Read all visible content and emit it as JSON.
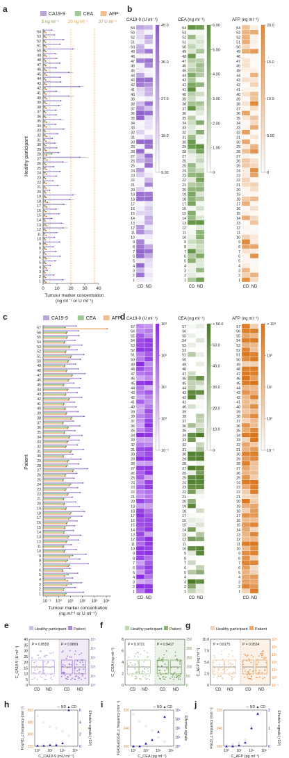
{
  "colors": {
    "ca199": "#b9a6d8",
    "cea": "#9fc896",
    "afp": "#f1c08e",
    "ca199_dark": "#8a5cc8",
    "cea_dark": "#5a8f3a",
    "afp_dark": "#e0893b",
    "dot_red": "#c0392b",
    "dot_green": "#2e7d32",
    "dot_purple": "#6a3d9a",
    "ref_line": "#f08a24",
    "nd_fill": "#c8a0d8",
    "cd_fill": "#1a1aa8"
  },
  "panel_letters": {
    "a": "a",
    "b": "b",
    "c": "c",
    "d": "d",
    "e": "e",
    "f": "f",
    "g": "g",
    "h": "h",
    "i": "i",
    "j": "j"
  },
  "legend": {
    "ca199": "CA19-9",
    "cea": "CEA",
    "afp": "AFP"
  },
  "ref_labels": {
    "cea": "5 ng ml⁻¹",
    "ca199": "20 ng ml⁻¹",
    "afp": "37 U ml⁻¹"
  },
  "chart_data": [
    {
      "id": "a",
      "type": "bar",
      "orientation": "horizontal",
      "ylabel": "Healthy participant",
      "xlabel": "Tumour marker concentration",
      "xlabel2": "(ng ml⁻¹ or U ml⁻¹)",
      "xlim": [
        0,
        40
      ],
      "xticks": [
        "0",
        "10",
        "20",
        "30",
        "40"
      ],
      "reference_lines": [
        5,
        20,
        37
      ],
      "categories": [
        "1",
        "2",
        "3",
        "4",
        "5",
        "6",
        "7",
        "8",
        "9",
        "10",
        "11",
        "12",
        "13",
        "14",
        "15",
        "16",
        "17",
        "18",
        "19",
        "20",
        "21",
        "22",
        "23",
        "24",
        "25",
        "26",
        "27",
        "28",
        "29",
        "30",
        "31",
        "32",
        "33",
        "34",
        "35",
        "36",
        "37",
        "38",
        "39",
        "40",
        "41",
        "42",
        "43",
        "44",
        "45",
        "46",
        "47",
        "48",
        "49",
        "50",
        "51",
        "52",
        "53",
        "54"
      ],
      "series": [
        {
          "name": "CA19-9",
          "values": [
            14.2,
            7.8,
            3.1,
            5.2,
            8.6,
            12.3,
            9.1,
            7.4,
            11.8,
            8.2,
            9.7,
            14.5,
            13.2,
            6.1,
            11.4,
            9.3,
            14.8,
            19.2,
            21.5,
            4.8,
            10.6,
            7.2,
            9.4,
            12.1,
            7.6,
            14.3,
            26.4,
            11.2,
            9.8,
            8.5,
            6.7,
            10.3,
            14.6,
            8.9,
            12.4,
            9.6,
            9.1,
            11.3,
            12.8,
            18.6,
            9.4,
            26.2,
            12.7,
            12.5,
            18.7,
            9.3,
            12.1,
            9.6,
            8.8,
            21.3,
            12.2,
            14.6,
            8.1,
            6.2
          ]
        },
        {
          "name": "CEA",
          "values": [
            1.3,
            1.1,
            0.9,
            1.4,
            1.2,
            1.6,
            1.0,
            1.3,
            1.5,
            1.1,
            1.2,
            1.4,
            1.6,
            1.0,
            1.3,
            1.2,
            1.5,
            1.7,
            1.4,
            1.1,
            1.3,
            1.2,
            1.0,
            1.4,
            1.6,
            1.2,
            1.5,
            6.2,
            1.3,
            1.1,
            1.2,
            1.4,
            1.0,
            1.3,
            1.5,
            1.2,
            1.1,
            1.3,
            1.4,
            1.6,
            1.2,
            1.5,
            1.3,
            1.1,
            1.4,
            1.2,
            1.3,
            1.0,
            1.5,
            1.2,
            1.4,
            1.1,
            1.3,
            1.2
          ]
        },
        {
          "name": "AFP",
          "values": [
            2.1,
            1.8,
            1.5,
            2.4,
            2.0,
            2.6,
            1.9,
            2.2,
            2.5,
            1.7,
            2.3,
            2.1,
            2.8,
            1.6,
            2.4,
            2.0,
            2.7,
            3.1,
            2.2,
            1.9,
            2.1,
            2.3,
            1.8,
            2.6,
            2.4,
            2.0,
            2.9,
            2.5,
            2.2,
            1.9,
            2.1,
            2.4,
            1.7,
            2.3,
            2.6,
            2.0,
            1.9,
            2.2,
            2.5,
            2.7,
            2.1,
            2.4,
            2.3,
            2.0,
            2.6,
            2.2,
            2.1,
            1.8,
            2.4,
            2.0,
            2.3,
            1.9,
            2.2,
            2.1
          ]
        }
      ]
    },
    {
      "id": "b",
      "type": "heatmap",
      "panels": [
        {
          "title": "CA19-9 (U ml⁻¹)",
          "columns": [
            "CD",
            "ND"
          ],
          "colorbar_ticks": [
            "9.00",
            "18.0",
            "27.0",
            "36.0",
            "45.0"
          ],
          "colorbar_range": [
            0,
            45
          ],
          "color": "#8a5cc8"
        },
        {
          "title": "CEA (ng ml⁻¹)",
          "columns": [
            "CD",
            "ND"
          ],
          "colorbar_ticks": [
            "0",
            "1.00",
            "2.00",
            "3.00",
            "4.00",
            "5.00",
            "6.00"
          ],
          "colorbar_range": [
            0,
            6.4
          ],
          "color": "#5a8f3a"
        },
        {
          "title": "AFP (ng ml⁻¹)",
          "columns": [
            "CD",
            "ND"
          ],
          "colorbar_ticks": [
            "0",
            "5.00",
            "10.0",
            "15.0",
            "20.0"
          ],
          "colorbar_range": [
            0,
            20
          ],
          "color": "#e0893b"
        }
      ],
      "rows": 54
    },
    {
      "id": "c",
      "type": "bar",
      "orientation": "horizontal",
      "xscale": "log",
      "ylabel": "Patient",
      "xlabel": "Tumour marker concentration",
      "xlabel2": "(ng ml⁻¹ or U ml⁻¹)",
      "xticks": [
        "10⁻¹",
        "10⁰",
        "10¹",
        "10²",
        "10³",
        "10⁴"
      ],
      "xlim_log": [
        -1.3,
        4.4
      ],
      "categories": [
        "1",
        "2",
        "3",
        "4",
        "5",
        "6",
        "7",
        "8",
        "9",
        "10",
        "11",
        "12",
        "13",
        "14",
        "15",
        "16",
        "17",
        "18",
        "19",
        "20",
        "21",
        "22",
        "23",
        "24",
        "25",
        "26",
        "27",
        "28",
        "29",
        "30",
        "31",
        "32",
        "33",
        "34",
        "35",
        "36",
        "37",
        "38",
        "39",
        "40",
        "41",
        "42",
        "43",
        "44",
        "45",
        "46",
        "47",
        "48",
        "49",
        "50",
        "51",
        "52",
        "53",
        "54",
        "55",
        "56",
        "57"
      ],
      "series": [
        {
          "name": "CA19-9",
          "values": [
            120,
            25,
            80,
            15,
            40,
            9,
            300,
            60,
            200,
            30,
            12,
            45,
            70,
            18,
            22,
            35,
            90,
            150,
            55,
            28,
            14,
            65,
            40,
            110,
            20,
            33,
            260,
            48,
            75,
            16,
            120,
            38,
            52,
            95,
            24,
            60,
            18,
            140,
            42,
            30,
            22,
            85,
            36,
            58,
            19,
            72,
            160,
            44,
            27,
            68,
            130,
            35,
            90,
            24,
            50,
            46,
            30
          ]
        },
        {
          "name": "CEA",
          "values": [
            4.2,
            2.8,
            12,
            3.5,
            6.4,
            2.1,
            8.3,
            5.6,
            15,
            3.2,
            2.6,
            4.8,
            7.1,
            2.9,
            3.4,
            5.2,
            9.6,
            11,
            4.4,
            3.1,
            2.7,
            6.2,
            4.1,
            10,
            2.5,
            3.8,
            18,
            5.3,
            6.9,
            2.6,
            12,
            4.2,
            5.8,
            8.7,
            3.1,
            6.4,
            2.4,
            13,
            4.6,
            3.6,
            2.8,
            7.9,
            4.0,
            5.9,
            2.7,
            7.3,
            14,
            4.9,
            3.3,
            6.8,
            12,
            4.1,
            8.8,
            3.2,
            5.4,
            5.0,
            3.5
          ]
        },
        {
          "name": "AFP",
          "values": [
            3.2,
            2.5,
            4.8,
            5.6,
            3.1,
            2.2,
            6.4,
            4.0,
            8.6,
            2.9,
            2.4,
            4.1,
            5.9,
            2.7,
            3.3,
            4.6,
            7.2,
            9.1,
            3.8,
            2.8,
            2.5,
            5.4,
            3.6,
            8.0,
            2.3,
            3.4,
            15,
            4.5,
            5.7,
            2.4,
            9.8,
            3.7,
            5.0,
            7.4,
            2.9,
            5.6,
            2.2,
            11,
            4.0,
            3.2,
            2.6,
            6.8,
            3.5,
            5.2,
            2.5,
            6.2,
            12,
            4.3,
            3.0,
            5.9,
            10,
            3.6,
            7.6,
            2.9,
            4.7,
            4.4,
            12000
          ]
        }
      ]
    },
    {
      "id": "d",
      "type": "heatmap",
      "panels": [
        {
          "title": "CA19-9 (U ml⁻¹)",
          "columns": [
            "CD",
            "ND"
          ],
          "colorbar_ticks": [
            "10⁻¹",
            "10⁰",
            "10¹",
            "10²",
            "10³"
          ],
          "color": "#8a2be2"
        },
        {
          "title": "CEA (ng ml⁻¹)",
          "columns": [
            "CD",
            "ND"
          ],
          "colorbar_ticks": [
            "0",
            "10.0",
            "20.0",
            "30.0",
            "40.0",
            "50.0",
            "> 50.0"
          ],
          "color": "#4a7a25"
        },
        {
          "title": "AFP (ng ml⁻¹)",
          "columns": [
            "CD",
            "ND"
          ],
          "colorbar_ticks": [
            "10⁻¹",
            "10⁰",
            "10¹",
            "10²",
            "> 10³"
          ],
          "color": "#d9741a"
        }
      ],
      "rows": 57
    },
    {
      "id": "e",
      "type": "scatter",
      "ylabel": "C_CA19-9 (U ml⁻¹)",
      "ylabel_right": "",
      "legend": [
        "Healthy participant",
        "Patient"
      ],
      "yticks": [
        "0",
        "5",
        "10",
        "15",
        "20",
        "25",
        "30",
        "35",
        "40"
      ],
      "yticks_right": [
        "10⁰",
        "10¹",
        "10²",
        "10³",
        "10⁴",
        "10⁵"
      ],
      "categories": [
        "CD",
        "ND",
        "CD",
        "ND"
      ],
      "p_values": [
        "P = 0.8559",
        "P = 0.9869"
      ]
    },
    {
      "id": "f",
      "type": "scatter",
      "ylabel": "C_CEA (ng ml⁻¹)",
      "legend": [
        "Healthy participant",
        "Patient"
      ],
      "yticks": [
        "0",
        "2",
        "4",
        "6",
        "8"
      ],
      "yticks_right": [
        "0",
        "50",
        "100",
        "150",
        "200",
        "250"
      ],
      "categories": [
        "CD",
        "ND",
        "CD",
        "ND"
      ],
      "p_values": [
        "P = 0.9721",
        "P = 0.9417"
      ]
    },
    {
      "id": "g",
      "type": "scatter",
      "ylabel": "C_AFP (ng ml⁻¹)",
      "legend": [
        "Healthy participant",
        "Patient"
      ],
      "yticks": [
        "0",
        "2.5",
        "5.0",
        "7.5",
        "10.0"
      ],
      "yticks_right": [
        "10⁻¹",
        "10⁰",
        "10¹",
        "10²",
        "10³",
        "10⁴",
        "10⁵"
      ],
      "categories": [
        "CD",
        "ND",
        "CD",
        "ND"
      ],
      "p_values": [
        "P = 0.8175",
        "P = 0.9534"
      ]
    },
    {
      "id": "h",
      "type": "scatter",
      "xscale": "log",
      "legend": [
        "ND",
        "CD"
      ],
      "ylabel": "FGpYD_c frequency (min⁻¹)",
      "ylabel_right": "Effective signals (×10³)",
      "xlabel": "C_CA19-9 (mU ml⁻¹)",
      "xticks": [
        "10⁰",
        "10²",
        "10⁴",
        "10⁶"
      ],
      "yticks": [
        "320",
        "400",
        "480",
        "560"
      ],
      "yticks_right": [
        "0",
        "2",
        "4",
        "6"
      ],
      "nd": {
        "x": [
          1,
          10,
          100,
          1000,
          10000,
          100000
        ],
        "y": [
          520,
          480,
          450,
          440,
          420,
          390
        ]
      },
      "cd": {
        "x": [
          1,
          10,
          100,
          1000,
          10000,
          100000
        ],
        "y": [
          0.1,
          0.1,
          0.2,
          0.2,
          0.5,
          6.0
        ]
      }
    },
    {
      "id": "i",
      "type": "scatter",
      "xscale": "log",
      "legend": [
        "ND",
        "CD"
      ],
      "ylabel": "FGK(Gal)GGD_c frequency (min⁻¹)",
      "ylabel_right": "Effective signals",
      "xlabel": "C_CEA (pg ml⁻¹)",
      "xticks": [
        "10⁰",
        "10²",
        "10⁴",
        "10⁶"
      ],
      "yticks": [
        "160",
        "240",
        "320"
      ],
      "yticks_right": [
        "10⁰",
        "10¹",
        "10²",
        "10³",
        "10⁴"
      ],
      "nd": {
        "x": [
          1,
          10,
          100,
          1000,
          10000,
          100000
        ],
        "y": [
          300,
          270,
          250,
          230,
          200,
          180
        ]
      },
      "cd": {
        "x": [
          1,
          10,
          100,
          1000,
          10000,
          100000
        ],
        "y": [
          1,
          1,
          2,
          5,
          40,
          1800
        ]
      }
    },
    {
      "id": "j",
      "type": "scatter",
      "xscale": "log",
      "legend": [
        "ND",
        "CD"
      ],
      "ylabel": "FGLD_c frequency (min⁻¹)",
      "ylabel_right": "Effective signals (×10³)",
      "xlabel": "C_AFP (pg ml⁻¹)",
      "xticks": [
        "10⁰",
        "10²",
        "10⁴",
        "10⁶"
      ],
      "yticks": [
        "160",
        "240",
        "320"
      ],
      "yticks_right": [
        "0",
        "1",
        "2"
      ],
      "nd": {
        "x": [
          1,
          10,
          100,
          1000,
          10000,
          100000
        ],
        "y": [
          165,
          170,
          175,
          190,
          250,
          300
        ]
      },
      "cd": {
        "x": [
          1,
          10,
          100,
          1000,
          10000,
          100000
        ],
        "y": [
          0.0,
          0.0,
          0.05,
          0.2,
          1.0,
          1.8
        ]
      }
    }
  ]
}
